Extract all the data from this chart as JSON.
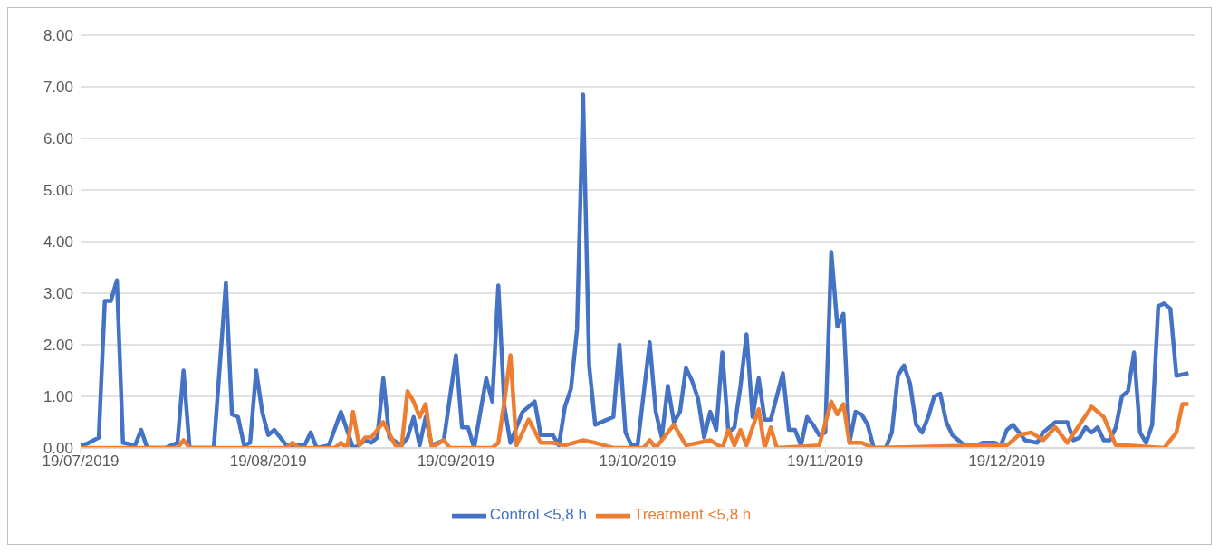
{
  "chart_data": {
    "type": "line",
    "xlim": [
      "2019-07-19",
      "2020-01-19"
    ],
    "xticks": [
      {
        "value": "2019-07-19",
        "label": "19/07/2019"
      },
      {
        "value": "2019-08-19",
        "label": "19/08/2019"
      },
      {
        "value": "2019-09-19",
        "label": "19/09/2019"
      },
      {
        "value": "2019-10-19",
        "label": "19/10/2019"
      },
      {
        "value": "2019-11-19",
        "label": "19/11/2019"
      },
      {
        "value": "2019-12-19",
        "label": "19/12/2019"
      }
    ],
    "ylim": [
      0,
      8
    ],
    "yticks": [
      {
        "value": 0,
        "label": "0.00"
      },
      {
        "value": 1,
        "label": "1.00"
      },
      {
        "value": 2,
        "label": "2.00"
      },
      {
        "value": 3,
        "label": "3.00"
      },
      {
        "value": 4,
        "label": "4.00"
      },
      {
        "value": 5,
        "label": "5.00"
      },
      {
        "value": 6,
        "label": "6.00"
      },
      {
        "value": 7,
        "label": "7.00"
      },
      {
        "value": 8,
        "label": "8.00"
      }
    ],
    "grid": "y",
    "legend": "bottom",
    "marker": "none",
    "line_style": "solid",
    "series": [
      {
        "name": "Control <5,8 h",
        "color": "#4472c4",
        "x": [
          "2019-07-19",
          "2019-07-20",
          "2019-07-22",
          "2019-07-23",
          "2019-07-24",
          "2019-07-25",
          "2019-07-26",
          "2019-07-28",
          "2019-07-29",
          "2019-07-30",
          "2019-08-02",
          "2019-08-03",
          "2019-08-04",
          "2019-08-05",
          "2019-08-06",
          "2019-08-10",
          "2019-08-12",
          "2019-08-13",
          "2019-08-14",
          "2019-08-15",
          "2019-08-16",
          "2019-08-17",
          "2019-08-18",
          "2019-08-19",
          "2019-08-20",
          "2019-08-22",
          "2019-08-25",
          "2019-08-26",
          "2019-08-27",
          "2019-08-29",
          "2019-08-31",
          "2019-09-02",
          "2019-09-03",
          "2019-09-04",
          "2019-09-05",
          "2019-09-06",
          "2019-09-07",
          "2019-09-08",
          "2019-09-10",
          "2019-09-11",
          "2019-09-12",
          "2019-09-13",
          "2019-09-14",
          "2019-09-15",
          "2019-09-17",
          "2019-09-19",
          "2019-09-20",
          "2019-09-21",
          "2019-09-22",
          "2019-09-24",
          "2019-09-25",
          "2019-09-26",
          "2019-09-27",
          "2019-09-28",
          "2019-09-30",
          "2019-10-02",
          "2019-10-03",
          "2019-10-05",
          "2019-10-06",
          "2019-10-07",
          "2019-10-08",
          "2019-10-09",
          "2019-10-10",
          "2019-10-11",
          "2019-10-12",
          "2019-10-14",
          "2019-10-15",
          "2019-10-16",
          "2019-10-17",
          "2019-10-18",
          "2019-10-19",
          "2019-10-21",
          "2019-10-22",
          "2019-10-23",
          "2019-10-24",
          "2019-10-25",
          "2019-10-26",
          "2019-10-27",
          "2019-10-28",
          "2019-10-29",
          "2019-10-30",
          "2019-10-31",
          "2019-11-01",
          "2019-11-02",
          "2019-11-03",
          "2019-11-04",
          "2019-11-05",
          "2019-11-06",
          "2019-11-07",
          "2019-11-08",
          "2019-11-09",
          "2019-11-10",
          "2019-11-11",
          "2019-11-12",
          "2019-11-13",
          "2019-11-14",
          "2019-11-15",
          "2019-11-16",
          "2019-11-17",
          "2019-11-18",
          "2019-11-19",
          "2019-11-20",
          "2019-11-21",
          "2019-11-22",
          "2019-11-23",
          "2019-11-24",
          "2019-11-25",
          "2019-11-26",
          "2019-11-27",
          "2019-11-29",
          "2019-11-30",
          "2019-12-01",
          "2019-12-02",
          "2019-12-03",
          "2019-12-04",
          "2019-12-05",
          "2019-12-06",
          "2019-12-07",
          "2019-12-08",
          "2019-12-09",
          "2019-12-10",
          "2019-12-11",
          "2019-12-12",
          "2019-12-14",
          "2019-12-15",
          "2019-12-17",
          "2019-12-18",
          "2019-12-19",
          "2019-12-20",
          "2019-12-21",
          "2019-12-22",
          "2019-12-24",
          "2019-12-25",
          "2019-12-27",
          "2019-12-29",
          "2019-12-30",
          "2019-12-31",
          "2020-01-01",
          "2020-01-02",
          "2020-01-03",
          "2020-01-04",
          "2020-01-05",
          "2020-01-06",
          "2020-01-07",
          "2020-01-08",
          "2020-01-09",
          "2020-01-10",
          "2020-01-11",
          "2020-01-12",
          "2020-01-13",
          "2020-01-14",
          "2020-01-15",
          "2020-01-16",
          "2020-01-18"
        ],
        "values": [
          0.05,
          0.08,
          0.2,
          2.85,
          2.85,
          3.25,
          0.1,
          0.05,
          0.35,
          0,
          0,
          0.05,
          0.1,
          1.5,
          0,
          0,
          3.2,
          0.65,
          0.6,
          0.05,
          0.1,
          1.5,
          0.7,
          0.25,
          0.35,
          0.05,
          0.05,
          0.3,
          0,
          0.05,
          0.7,
          0,
          0.05,
          0.15,
          0.1,
          0.2,
          1.35,
          0.2,
          0.05,
          0.2,
          0.6,
          0.05,
          0.6,
          0.05,
          0.15,
          1.8,
          0.4,
          0.4,
          0,
          1.35,
          0.9,
          3.15,
          0.8,
          0.1,
          0.7,
          0.9,
          0.25,
          0.25,
          0.05,
          0.8,
          1.15,
          2.3,
          6.85,
          1.6,
          0.45,
          0.55,
          0.6,
          2.0,
          0.3,
          0.05,
          0.05,
          2.05,
          0.7,
          0.2,
          1.2,
          0.5,
          0.7,
          1.55,
          1.3,
          0.95,
          0.2,
          0.7,
          0.35,
          1.85,
          0.3,
          0.4,
          1.2,
          2.2,
          0.6,
          1.35,
          0.55,
          0.55,
          1.0,
          1.45,
          0.35,
          0.35,
          0.05,
          0.6,
          0.45,
          0.25,
          0.3,
          3.8,
          2.35,
          2.6,
          0.1,
          0.7,
          0.65,
          0.45,
          0,
          0,
          0.3,
          1.4,
          1.6,
          1.25,
          0.45,
          0.3,
          0.6,
          1.0,
          1.05,
          0.5,
          0.25,
          0.15,
          0.05,
          0.05,
          0.1,
          0.1,
          0.05,
          0.35,
          0.45,
          0.3,
          0.15,
          0.1,
          0.3,
          0.5,
          0.5,
          0.15,
          0.2,
          0.4,
          0.3,
          0.4,
          0.15,
          0.15,
          0.4,
          1.0,
          1.1,
          1.85,
          0.3,
          0.1,
          0.45,
          2.75,
          2.8,
          2.7,
          1.4,
          1.45
        ]
      },
      {
        "name": "Treatment <5,8 h",
        "color": "#ed7d31",
        "x": [
          "2019-07-19",
          "2019-08-04",
          "2019-08-05",
          "2019-08-06",
          "2019-08-22",
          "2019-08-23",
          "2019-08-24",
          "2019-08-30",
          "2019-08-31",
          "2019-09-01",
          "2019-09-02",
          "2019-09-03",
          "2019-09-04",
          "2019-09-05",
          "2019-09-07",
          "2019-09-09",
          "2019-09-10",
          "2019-09-11",
          "2019-09-12",
          "2019-09-13",
          "2019-09-14",
          "2019-09-15",
          "2019-09-17",
          "2019-09-18",
          "2019-09-25",
          "2019-09-26",
          "2019-09-27",
          "2019-09-28",
          "2019-09-29",
          "2019-10-01",
          "2019-10-03",
          "2019-10-05",
          "2019-10-07",
          "2019-10-10",
          "2019-10-12",
          "2019-10-15",
          "2019-10-20",
          "2019-10-21",
          "2019-10-22",
          "2019-10-25",
          "2019-10-27",
          "2019-10-31",
          "2019-11-02",
          "2019-11-03",
          "2019-11-04",
          "2019-11-05",
          "2019-11-06",
          "2019-11-08",
          "2019-11-09",
          "2019-11-10",
          "2019-11-11",
          "2019-11-18",
          "2019-11-20",
          "2019-11-21",
          "2019-11-22",
          "2019-11-23",
          "2019-11-25",
          "2019-11-27",
          "2019-12-14",
          "2019-12-19",
          "2019-12-21",
          "2019-12-23",
          "2019-12-25",
          "2019-12-27",
          "2019-12-29",
          "2020-01-02",
          "2020-01-04",
          "2020-01-06",
          "2020-01-08",
          "2020-01-14",
          "2020-01-16",
          "2020-01-17",
          "2020-01-18"
        ],
        "values": [
          0,
          0,
          0.15,
          0,
          0,
          0.1,
          0,
          0,
          0.1,
          0,
          0.7,
          0.05,
          0.2,
          0.2,
          0.5,
          0.05,
          0,
          1.1,
          0.9,
          0.6,
          0.85,
          0,
          0.15,
          0,
          0,
          0.1,
          0.9,
          1.8,
          0.05,
          0.55,
          0.1,
          0.1,
          0.05,
          0.15,
          0.1,
          0,
          0,
          0.15,
          0,
          0.45,
          0.05,
          0.15,
          0,
          0.35,
          0.05,
          0.35,
          0.05,
          0.75,
          0,
          0.4,
          0,
          0.05,
          0.9,
          0.65,
          0.85,
          0.1,
          0.1,
          0,
          0.05,
          0.05,
          0.25,
          0.3,
          0.15,
          0.4,
          0.1,
          0.8,
          0.6,
          0.05,
          0.05,
          0,
          0.3,
          0.85,
          0.85
        ]
      }
    ]
  }
}
